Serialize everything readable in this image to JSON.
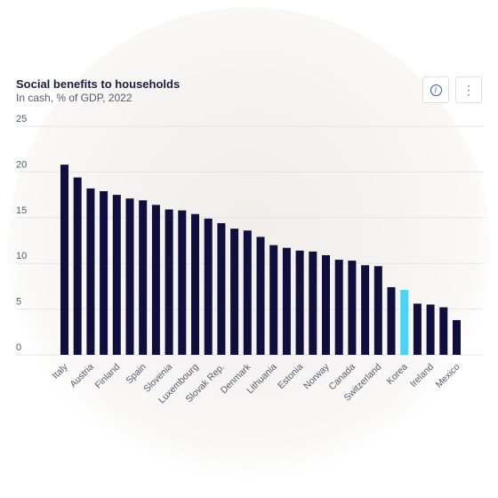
{
  "header": {
    "title": "Social benefits to households",
    "subtitle": "In cash, % of GDP, 2022",
    "info_icon": "info-icon",
    "menu_icon": "more-vertical-icon",
    "menu_glyph": "⋮",
    "info_glyph": "i"
  },
  "colors": {
    "bar": "#0f0f3d",
    "highlight": "#4dd3f5",
    "grid": "#e3e5ea"
  },
  "chart_data": {
    "type": "bar",
    "title": "Social benefits to households",
    "subtitle": "In cash, % of GDP, 2022",
    "ylim": [
      0,
      25
    ],
    "yticks": [
      0,
      5,
      10,
      15,
      20,
      25
    ],
    "grid": true,
    "highlight_category": "Korea",
    "categories": [
      "Italy",
      "",
      "Austria",
      "",
      "Finland",
      "",
      "Spain",
      "",
      "Slovenia",
      "",
      "Luxembourg",
      "",
      "Slovak Rep.",
      "",
      "Denmark",
      "",
      "Lithuania",
      "",
      "Estonia",
      "",
      "Norway",
      "",
      "Canada",
      "",
      "Switzerland",
      "",
      "Korea",
      "",
      "Ireland",
      "",
      "Mexico"
    ],
    "values": [
      20.8,
      19.4,
      18.2,
      17.9,
      17.5,
      17.1,
      16.9,
      16.4,
      15.9,
      15.8,
      15.4,
      14.9,
      14.4,
      13.8,
      13.6,
      12.9,
      12.0,
      11.7,
      11.4,
      11.3,
      10.9,
      10.4,
      10.3,
      9.8,
      9.7,
      7.4,
      7.1,
      5.6,
      5.5,
      5.2,
      3.8
    ]
  }
}
